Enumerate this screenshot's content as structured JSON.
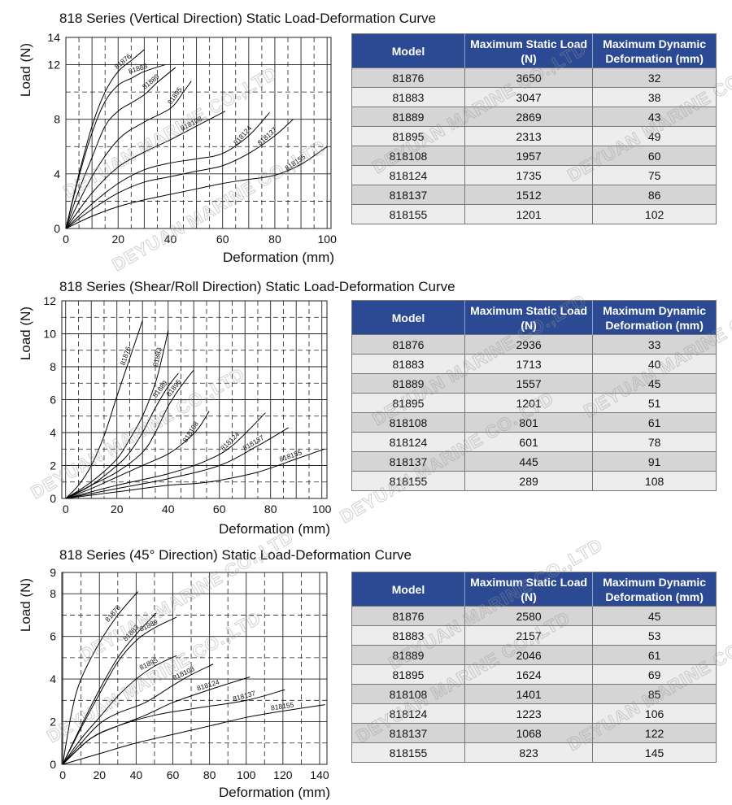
{
  "watermark": "DEYUAN MARINE CO.,LTD",
  "colors": {
    "table_header": "#2b4a93",
    "row_light": "#ededed",
    "row_dark": "#d5d5d5",
    "curve": "#000000"
  },
  "chart_data": [
    {
      "type": "line",
      "title": "818 Series (Vertical Direction) Static Load-Deformation Curve",
      "xlabel": "Deformation (mm)",
      "ylabel": "Load (N)",
      "xlim": [
        0,
        101.5
      ],
      "ylim": [
        0,
        14
      ],
      "xticks": [
        0,
        20,
        40,
        60,
        80,
        100
      ],
      "yticks": [
        0,
        4,
        8,
        12,
        14
      ],
      "grid": true,
      "series": [
        {
          "name": "81876",
          "points": [
            [
              0,
              0
            ],
            [
              5,
              4
            ],
            [
              10,
              7.5
            ],
            [
              15,
              10
            ],
            [
              20,
              11.5
            ],
            [
              25,
              12.3
            ],
            [
              30,
              13.1
            ]
          ]
        },
        {
          "name": "81883",
          "points": [
            [
              0,
              0
            ],
            [
              5,
              3.8
            ],
            [
              10,
              7
            ],
            [
              15,
              9.3
            ],
            [
              20,
              10.5
            ],
            [
              25,
              11
            ],
            [
              30,
              11.5
            ],
            [
              38,
              12
            ]
          ]
        },
        {
          "name": "81889",
          "points": [
            [
              0,
              0
            ],
            [
              5,
              2.8
            ],
            [
              10,
              5.2
            ],
            [
              15,
              7.5
            ],
            [
              20,
              8.6
            ],
            [
              25,
              9.2
            ],
            [
              30,
              9.8
            ],
            [
              35,
              10.7
            ],
            [
              42,
              11.8
            ]
          ]
        },
        {
          "name": "81895",
          "points": [
            [
              0,
              0
            ],
            [
              10,
              3.8
            ],
            [
              20,
              6.5
            ],
            [
              30,
              7.8
            ],
            [
              40,
              8.8
            ],
            [
              45,
              10
            ],
            [
              48,
              10.8
            ]
          ]
        },
        {
          "name": "818108",
          "points": [
            [
              0,
              0
            ],
            [
              10,
              2.6
            ],
            [
              20,
              4.5
            ],
            [
              30,
              5.6
            ],
            [
              40,
              6.5
            ],
            [
              50,
              7.5
            ],
            [
              61,
              8.6
            ]
          ]
        },
        {
          "name": "818124",
          "points": [
            [
              0,
              0
            ],
            [
              10,
              1.8
            ],
            [
              20,
              3.3
            ],
            [
              30,
              4.3
            ],
            [
              40,
              4.8
            ],
            [
              50,
              5.1
            ],
            [
              60,
              5.5
            ],
            [
              70,
              6.8
            ],
            [
              78,
              8.5
            ]
          ]
        },
        {
          "name": "818137",
          "points": [
            [
              0,
              0
            ],
            [
              10,
              1.4
            ],
            [
              20,
              2.6
            ],
            [
              30,
              3.4
            ],
            [
              40,
              3.8
            ],
            [
              50,
              4.2
            ],
            [
              60,
              4.6
            ],
            [
              70,
              5.5
            ],
            [
              80,
              6.8
            ],
            [
              87,
              8
            ]
          ]
        },
        {
          "name": "818155",
          "points": [
            [
              0,
              0
            ],
            [
              10,
              0.9
            ],
            [
              20,
              1.6
            ],
            [
              30,
              2.1
            ],
            [
              40,
              2.5
            ],
            [
              50,
              2.9
            ],
            [
              60,
              3.3
            ],
            [
              70,
              3.6
            ],
            [
              80,
              3.9
            ],
            [
              90,
              4.7
            ],
            [
              100,
              6
            ]
          ]
        }
      ]
    },
    {
      "type": "line",
      "title": "818 Series (Shear/Roll Direction) Static Load-Deformation Curve",
      "xlabel": "Deformation (mm)",
      "ylabel": "Load (N)",
      "xlim": [
        -1.5,
        102
      ],
      "ylim": [
        0,
        12
      ],
      "xticks": [
        0,
        20,
        40,
        60,
        80,
        100
      ],
      "yticks": [
        0,
        2,
        4,
        6,
        8,
        10,
        12
      ],
      "grid": true,
      "series": [
        {
          "name": "81876",
          "points": [
            [
              0,
              0
            ],
            [
              5,
              0.8
            ],
            [
              10,
              2
            ],
            [
              15,
              3.8
            ],
            [
              20,
              6.2
            ],
            [
              25,
              8.5
            ],
            [
              30,
              10.8
            ]
          ]
        },
        {
          "name": "81883",
          "points": [
            [
              0,
              0
            ],
            [
              10,
              1
            ],
            [
              20,
              2.4
            ],
            [
              25,
              3.6
            ],
            [
              30,
              5
            ],
            [
              35,
              7
            ],
            [
              38,
              8.8
            ],
            [
              40,
              10.2
            ]
          ]
        },
        {
          "name": "81889",
          "points": [
            [
              0,
              0
            ],
            [
              10,
              0.8
            ],
            [
              20,
              2
            ],
            [
              25,
              2.8
            ],
            [
              30,
              4
            ],
            [
              35,
              5.5
            ],
            [
              40,
              6.8
            ],
            [
              44,
              7.6
            ]
          ]
        },
        {
          "name": "81895",
          "points": [
            [
              0,
              0
            ],
            [
              10,
              0.8
            ],
            [
              20,
              1.6
            ],
            [
              30,
              2.8
            ],
            [
              35,
              4
            ],
            [
              40,
              5.6
            ],
            [
              45,
              6.8
            ],
            [
              50,
              7.8
            ]
          ]
        },
        {
          "name": "818108",
          "points": [
            [
              0,
              0
            ],
            [
              10,
              0.6
            ],
            [
              20,
              1.3
            ],
            [
              30,
              2
            ],
            [
              40,
              2.7
            ],
            [
              47,
              3.5
            ],
            [
              52,
              4.3
            ],
            [
              56,
              5.3
            ]
          ]
        },
        {
          "name": "818124",
          "points": [
            [
              0,
              0
            ],
            [
              20,
              0.8
            ],
            [
              40,
              1.5
            ],
            [
              55,
              2.3
            ],
            [
              65,
              3.2
            ],
            [
              78,
              5.2
            ]
          ]
        },
        {
          "name": "818137",
          "points": [
            [
              0,
              0
            ],
            [
              20,
              0.6
            ],
            [
              40,
              1.2
            ],
            [
              60,
              2
            ],
            [
              75,
              3.2
            ],
            [
              87,
              4.3
            ]
          ]
        },
        {
          "name": "818155",
          "points": [
            [
              0,
              0
            ],
            [
              20,
              0.4
            ],
            [
              40,
              0.8
            ],
            [
              50,
              0.9
            ],
            [
              60,
              1.1
            ],
            [
              75,
              1.6
            ],
            [
              90,
              2.4
            ],
            [
              101,
              3
            ]
          ]
        }
      ]
    },
    {
      "type": "line",
      "title": "818 Series (45° Direction) Static Load-Deformation Curve",
      "xlabel": "Deformation (mm)",
      "ylabel": "Load (N)",
      "xlim": [
        -0.5,
        144
      ],
      "ylim": [
        0,
        9
      ],
      "xticks": [
        0,
        20,
        40,
        60,
        80,
        100,
        120,
        140
      ],
      "yticks": [
        0,
        2,
        4,
        6,
        8,
        9
      ],
      "grid": true,
      "series": [
        {
          "name": "81876",
          "points": [
            [
              0,
              0
            ],
            [
              5,
              2.5
            ],
            [
              10,
              4
            ],
            [
              20,
              5.7
            ],
            [
              30,
              7
            ],
            [
              41,
              8.1
            ]
          ]
        },
        {
          "name": "81883",
          "points": [
            [
              0,
              0
            ],
            [
              10,
              1.8
            ],
            [
              20,
              3.5
            ],
            [
              30,
              5
            ],
            [
              40,
              6.1
            ],
            [
              51,
              7.1
            ]
          ]
        },
        {
          "name": "81889",
          "points": [
            [
              0,
              0
            ],
            [
              10,
              1.7
            ],
            [
              20,
              3.3
            ],
            [
              30,
              4.8
            ],
            [
              40,
              5.8
            ],
            [
              50,
              6.4
            ],
            [
              62,
              6.9
            ]
          ]
        },
        {
          "name": "81895",
          "points": [
            [
              0,
              0
            ],
            [
              10,
              1.2
            ],
            [
              20,
              2.2
            ],
            [
              30,
              3.2
            ],
            [
              40,
              4
            ],
            [
              50,
              4.6
            ],
            [
              62,
              5.1
            ]
          ]
        },
        {
          "name": "818108",
          "points": [
            [
              0,
              0
            ],
            [
              10,
              1
            ],
            [
              20,
              1.9
            ],
            [
              30,
              2.4
            ],
            [
              45,
              2.9
            ],
            [
              60,
              3.7
            ],
            [
              70,
              4.2
            ],
            [
              82,
              4.7
            ]
          ]
        },
        {
          "name": "818124",
          "points": [
            [
              0,
              0
            ],
            [
              15,
              1.2
            ],
            [
              30,
              1.8
            ],
            [
              45,
              2.3
            ],
            [
              60,
              2.9
            ],
            [
              80,
              3.5
            ],
            [
              102,
              4.1
            ]
          ]
        },
        {
          "name": "818137",
          "points": [
            [
              0,
              0
            ],
            [
              15,
              1.2
            ],
            [
              30,
              1.8
            ],
            [
              50,
              2.3
            ],
            [
              70,
              2.6
            ],
            [
              100,
              3
            ],
            [
              121,
              3.5
            ]
          ]
        },
        {
          "name": "818155",
          "points": [
            [
              0,
              0
            ],
            [
              20,
              0.5
            ],
            [
              40,
              1
            ],
            [
              60,
              1.4
            ],
            [
              80,
              1.8
            ],
            [
              100,
              2.2
            ],
            [
              120,
              2.5
            ],
            [
              143,
              2.8
            ]
          ]
        }
      ]
    }
  ],
  "tables": [
    {
      "headers": [
        "Model",
        "Maximum Static Load (N)",
        "Maximum Dynamic Deformation (mm)"
      ],
      "rows": [
        [
          "81876",
          "3650",
          "32"
        ],
        [
          "81883",
          "3047",
          "38"
        ],
        [
          "81889",
          "2869",
          "43"
        ],
        [
          "81895",
          "2313",
          "49"
        ],
        [
          "818108",
          "1957",
          "60"
        ],
        [
          "818124",
          "1735",
          "75"
        ],
        [
          "818137",
          "1512",
          "86"
        ],
        [
          "818155",
          "1201",
          "102"
        ]
      ]
    },
    {
      "headers": [
        "Model",
        "Maximum Static Load (N)",
        "Maximum Dynamic Deformation (mm)"
      ],
      "rows": [
        [
          "81876",
          "2936",
          "33"
        ],
        [
          "81883",
          "1713",
          "40"
        ],
        [
          "81889",
          "1557",
          "45"
        ],
        [
          "81895",
          "1201",
          "51"
        ],
        [
          "818108",
          "801",
          "61"
        ],
        [
          "818124",
          "601",
          "78"
        ],
        [
          "818137",
          "445",
          "91"
        ],
        [
          "818155",
          "289",
          "108"
        ]
      ]
    },
    {
      "headers": [
        "Model",
        "Maximum Static Load (N)",
        "Maximum Dynamic Deformation (mm)"
      ],
      "rows": [
        [
          "81876",
          "2580",
          "45"
        ],
        [
          "81883",
          "2157",
          "53"
        ],
        [
          "81889",
          "2046",
          "61"
        ],
        [
          "81895",
          "1624",
          "69"
        ],
        [
          "818108",
          "1401",
          "85"
        ],
        [
          "818124",
          "1223",
          "106"
        ],
        [
          "818137",
          "1068",
          "122"
        ],
        [
          "818155",
          "823",
          "145"
        ]
      ]
    }
  ]
}
